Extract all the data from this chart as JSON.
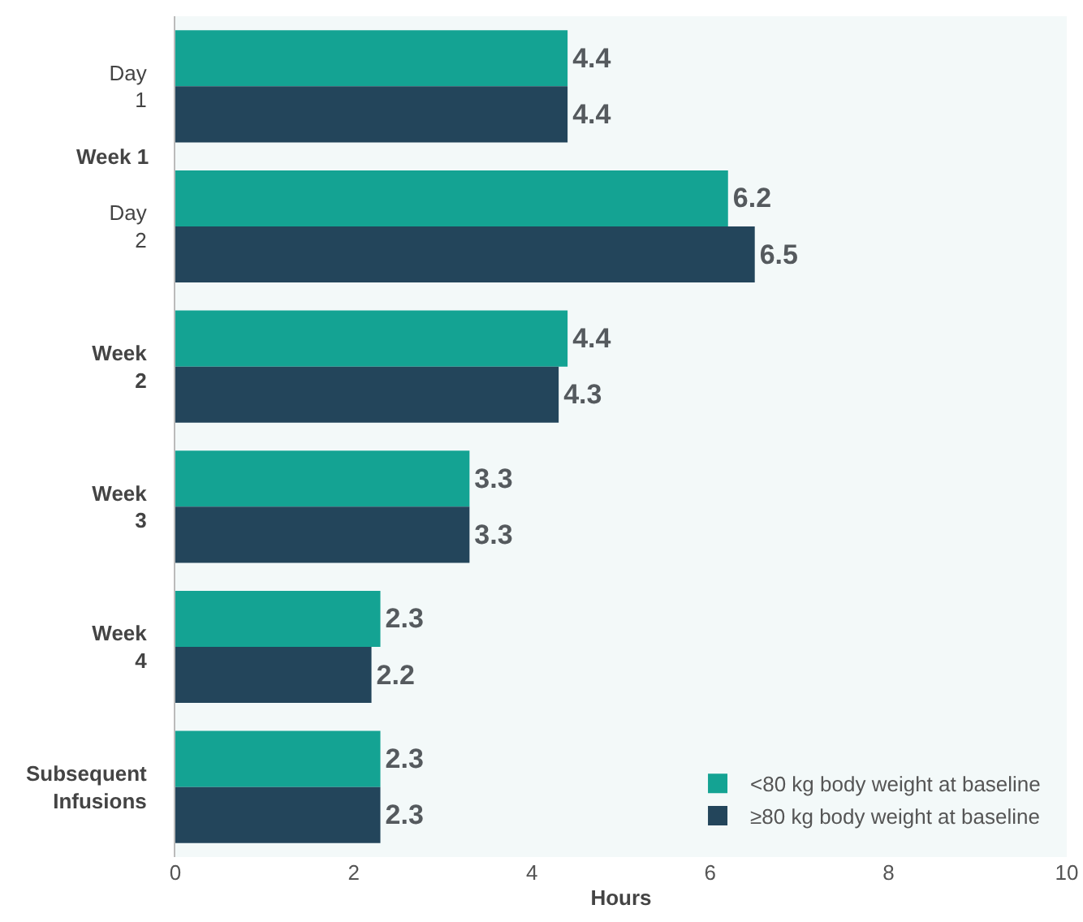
{
  "chart_data": {
    "type": "bar",
    "orientation": "horizontal",
    "xlabel": "Hours",
    "categories": [
      "Day 1",
      "Day 2",
      "Week 2",
      "Week 3",
      "Week 4",
      "Subsequent Infusions"
    ],
    "series": [
      {
        "name": "<80 kg body weight at baseline",
        "color": "#14a393",
        "values": [
          4.4,
          6.2,
          4.4,
          3.3,
          2.3,
          2.3
        ]
      },
      {
        "name": "≥80 kg body weight at baseline",
        "color": "#23455b",
        "values": [
          4.4,
          6.5,
          4.3,
          3.3,
          2.2,
          2.3
        ]
      }
    ],
    "annotations": [
      "Week 1"
    ],
    "xlim": [
      0,
      10
    ],
    "xticks": [
      0,
      2,
      4,
      6,
      8,
      10
    ],
    "grid": false,
    "legend": "bottom right",
    "data_labels": true
  }
}
